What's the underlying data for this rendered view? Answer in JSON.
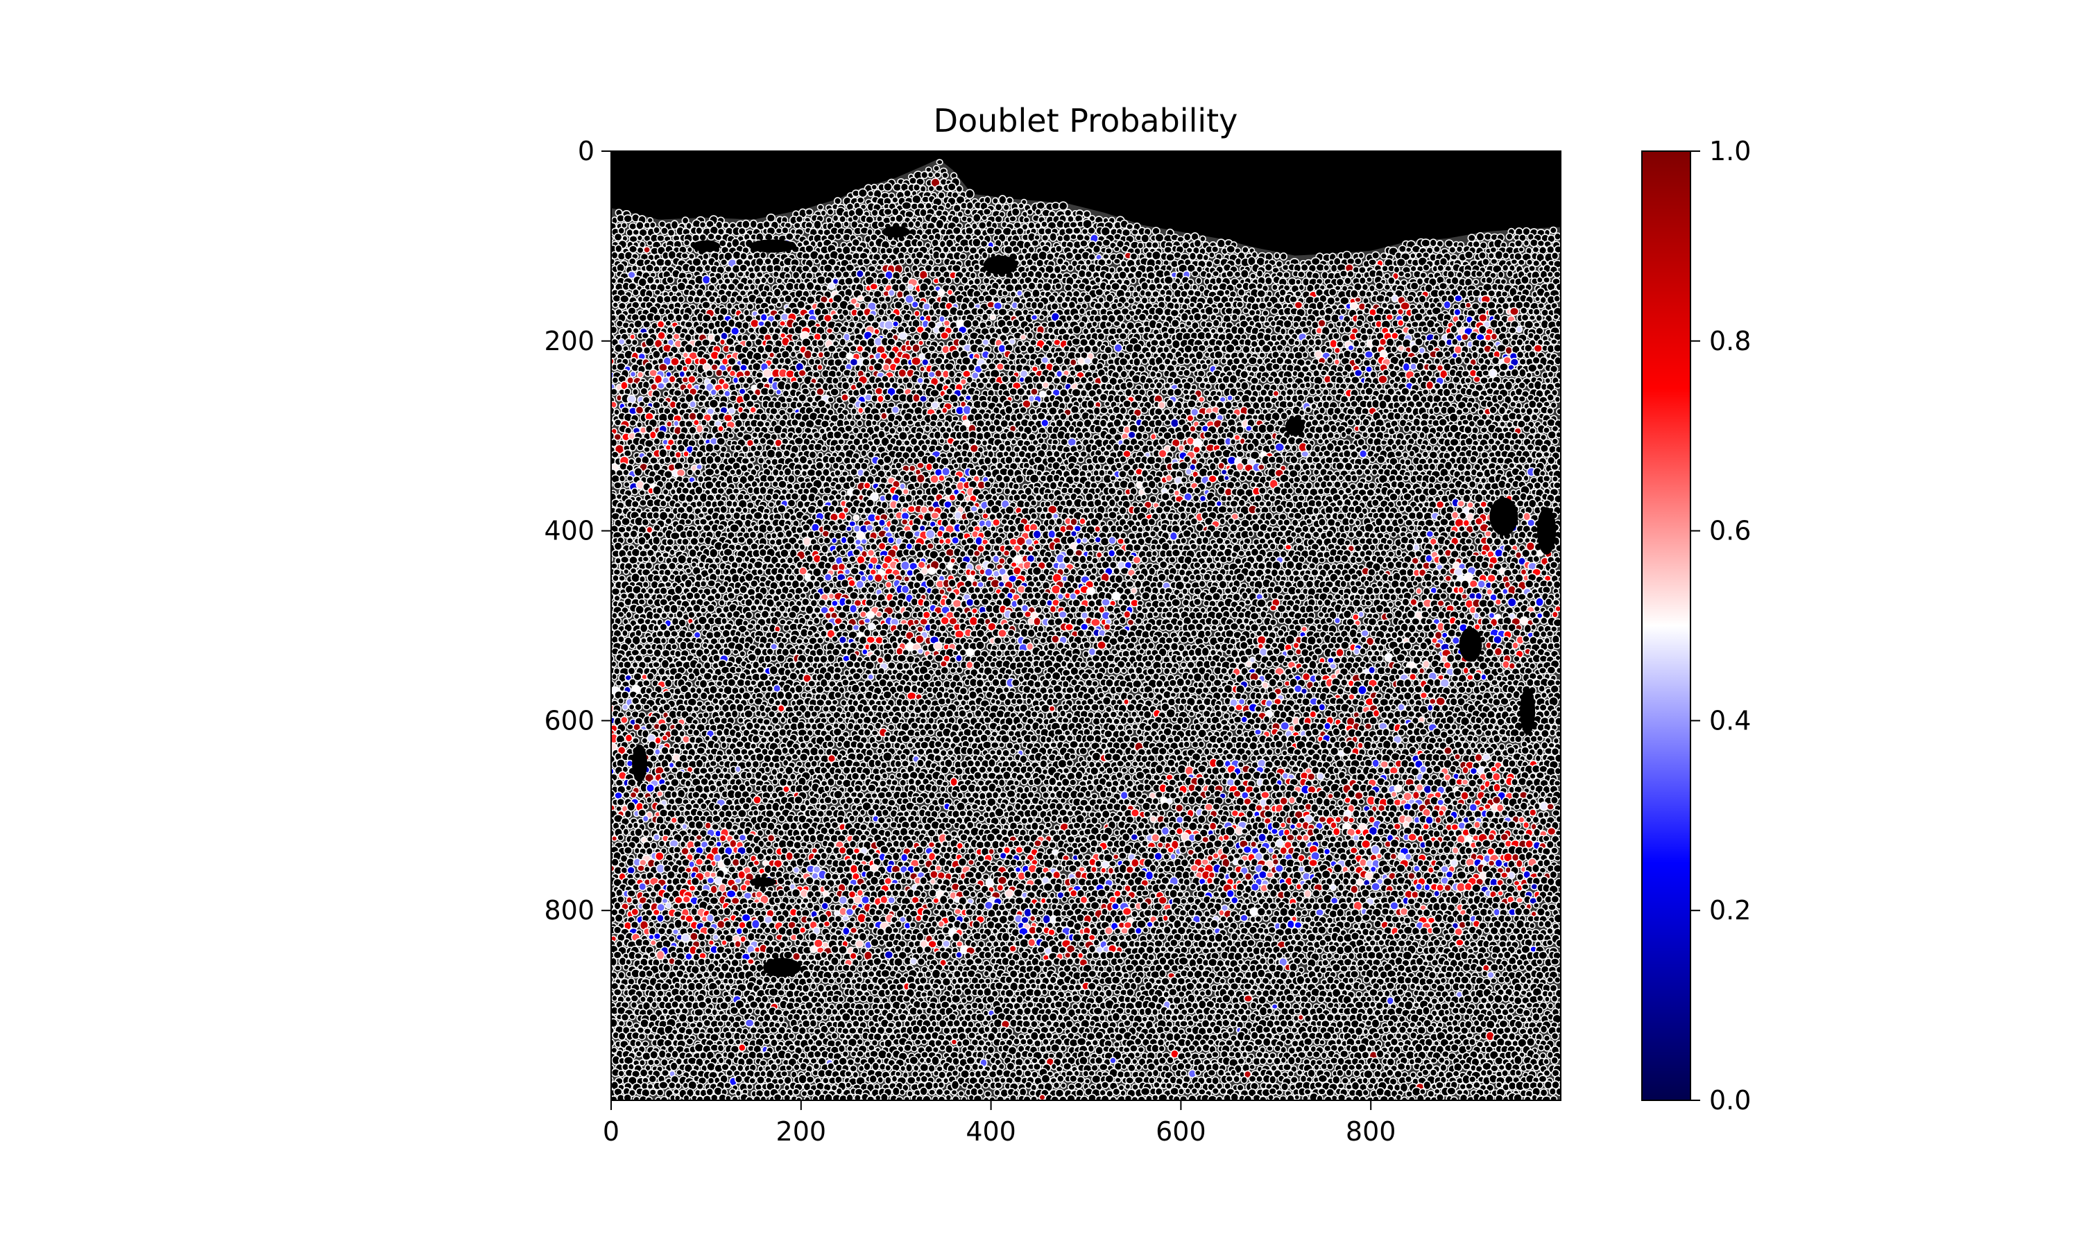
{
  "chart_data": {
    "type": "heatmap",
    "title": "Doublet Probability",
    "xlabel": "",
    "ylabel": "",
    "x_range": [
      0,
      1000
    ],
    "y_range": [
      0,
      1000
    ],
    "y_inverted": true,
    "x_ticks": [
      {
        "value": 0,
        "label": "0"
      },
      {
        "value": 200,
        "label": "200"
      },
      {
        "value": 400,
        "label": "400"
      },
      {
        "value": 600,
        "label": "600"
      },
      {
        "value": 800,
        "label": "800"
      }
    ],
    "y_ticks": [
      {
        "value": 0,
        "label": "0"
      },
      {
        "value": 200,
        "label": "200"
      },
      {
        "value": 400,
        "label": "400"
      },
      {
        "value": 600,
        "label": "600"
      },
      {
        "value": 800,
        "label": "800"
      }
    ],
    "background_color": "#000000",
    "cell_outline_color": "#ffffff",
    "colorbar": {
      "colormap": "seismic",
      "range": [
        0.0,
        1.0
      ],
      "stops": [
        "#00004d",
        "#0000ff",
        "#ffffff",
        "#ff0000",
        "#800000"
      ],
      "ticks": [
        {
          "value": 0.0,
          "label": "0.0"
        },
        {
          "value": 0.2,
          "label": "0.2"
        },
        {
          "value": 0.4,
          "label": "0.4"
        },
        {
          "value": 0.6,
          "label": "0.6"
        },
        {
          "value": 0.8,
          "label": "0.8"
        },
        {
          "value": 1.0,
          "label": "1.0"
        }
      ]
    },
    "tissue_top_edge": [
      [
        0,
        60
      ],
      [
        50,
        72
      ],
      [
        100,
        70
      ],
      [
        150,
        72
      ],
      [
        200,
        62
      ],
      [
        240,
        50
      ],
      [
        260,
        40
      ],
      [
        300,
        28
      ],
      [
        330,
        15
      ],
      [
        345,
        8
      ],
      [
        360,
        20
      ],
      [
        380,
        45
      ],
      [
        420,
        50
      ],
      [
        480,
        55
      ],
      [
        520,
        65
      ],
      [
        560,
        78
      ],
      [
        600,
        85
      ],
      [
        640,
        92
      ],
      [
        680,
        102
      ],
      [
        720,
        110
      ],
      [
        760,
        108
      ],
      [
        800,
        105
      ],
      [
        840,
        95
      ],
      [
        880,
        92
      ],
      [
        920,
        85
      ],
      [
        960,
        82
      ],
      [
        1000,
        80
      ]
    ],
    "tissue_holes": [
      {
        "x": 100,
        "y": 100,
        "rx": 15,
        "ry": 6
      },
      {
        "x": 170,
        "y": 100,
        "rx": 25,
        "ry": 7
      },
      {
        "x": 300,
        "y": 85,
        "rx": 15,
        "ry": 6
      },
      {
        "x": 410,
        "y": 120,
        "rx": 18,
        "ry": 10
      },
      {
        "x": 720,
        "y": 290,
        "rx": 10,
        "ry": 10
      },
      {
        "x": 940,
        "y": 385,
        "rx": 15,
        "ry": 20
      },
      {
        "x": 985,
        "y": 400,
        "rx": 10,
        "ry": 25
      },
      {
        "x": 905,
        "y": 520,
        "rx": 12,
        "ry": 18
      },
      {
        "x": 30,
        "y": 645,
        "rx": 8,
        "ry": 20
      },
      {
        "x": 180,
        "y": 860,
        "rx": 20,
        "ry": 10
      },
      {
        "x": 160,
        "y": 770,
        "rx": 14,
        "ry": 5
      },
      {
        "x": 965,
        "y": 590,
        "rx": 8,
        "ry": 25
      }
    ],
    "hotspot_regions": [
      {
        "x": 50,
        "y": 270,
        "rx": 80,
        "ry": 90,
        "density": 0.4
      },
      {
        "x": 110,
        "y": 230,
        "rx": 60,
        "ry": 60,
        "density": 0.35
      },
      {
        "x": 170,
        "y": 210,
        "rx": 60,
        "ry": 50,
        "density": 0.3
      },
      {
        "x": 300,
        "y": 200,
        "rx": 120,
        "ry": 80,
        "density": 0.35
      },
      {
        "x": 420,
        "y": 230,
        "rx": 100,
        "ry": 70,
        "density": 0.3
      },
      {
        "x": 330,
        "y": 440,
        "rx": 130,
        "ry": 110,
        "density": 0.5
      },
      {
        "x": 480,
        "y": 460,
        "rx": 80,
        "ry": 80,
        "density": 0.4
      },
      {
        "x": 620,
        "y": 330,
        "rx": 90,
        "ry": 80,
        "density": 0.3
      },
      {
        "x": 850,
        "y": 200,
        "rx": 130,
        "ry": 50,
        "density": 0.35
      },
      {
        "x": 920,
        "y": 460,
        "rx": 80,
        "ry": 100,
        "density": 0.4
      },
      {
        "x": 30,
        "y": 630,
        "rx": 50,
        "ry": 80,
        "density": 0.35
      },
      {
        "x": 100,
        "y": 780,
        "rx": 100,
        "ry": 80,
        "density": 0.45
      },
      {
        "x": 300,
        "y": 790,
        "rx": 150,
        "ry": 70,
        "density": 0.35
      },
      {
        "x": 480,
        "y": 780,
        "rx": 120,
        "ry": 70,
        "density": 0.35
      },
      {
        "x": 680,
        "y": 730,
        "rx": 150,
        "ry": 90,
        "density": 0.4
      },
      {
        "x": 870,
        "y": 730,
        "rx": 130,
        "ry": 100,
        "density": 0.45
      },
      {
        "x": 770,
        "y": 560,
        "rx": 120,
        "ry": 80,
        "density": 0.3
      }
    ]
  }
}
